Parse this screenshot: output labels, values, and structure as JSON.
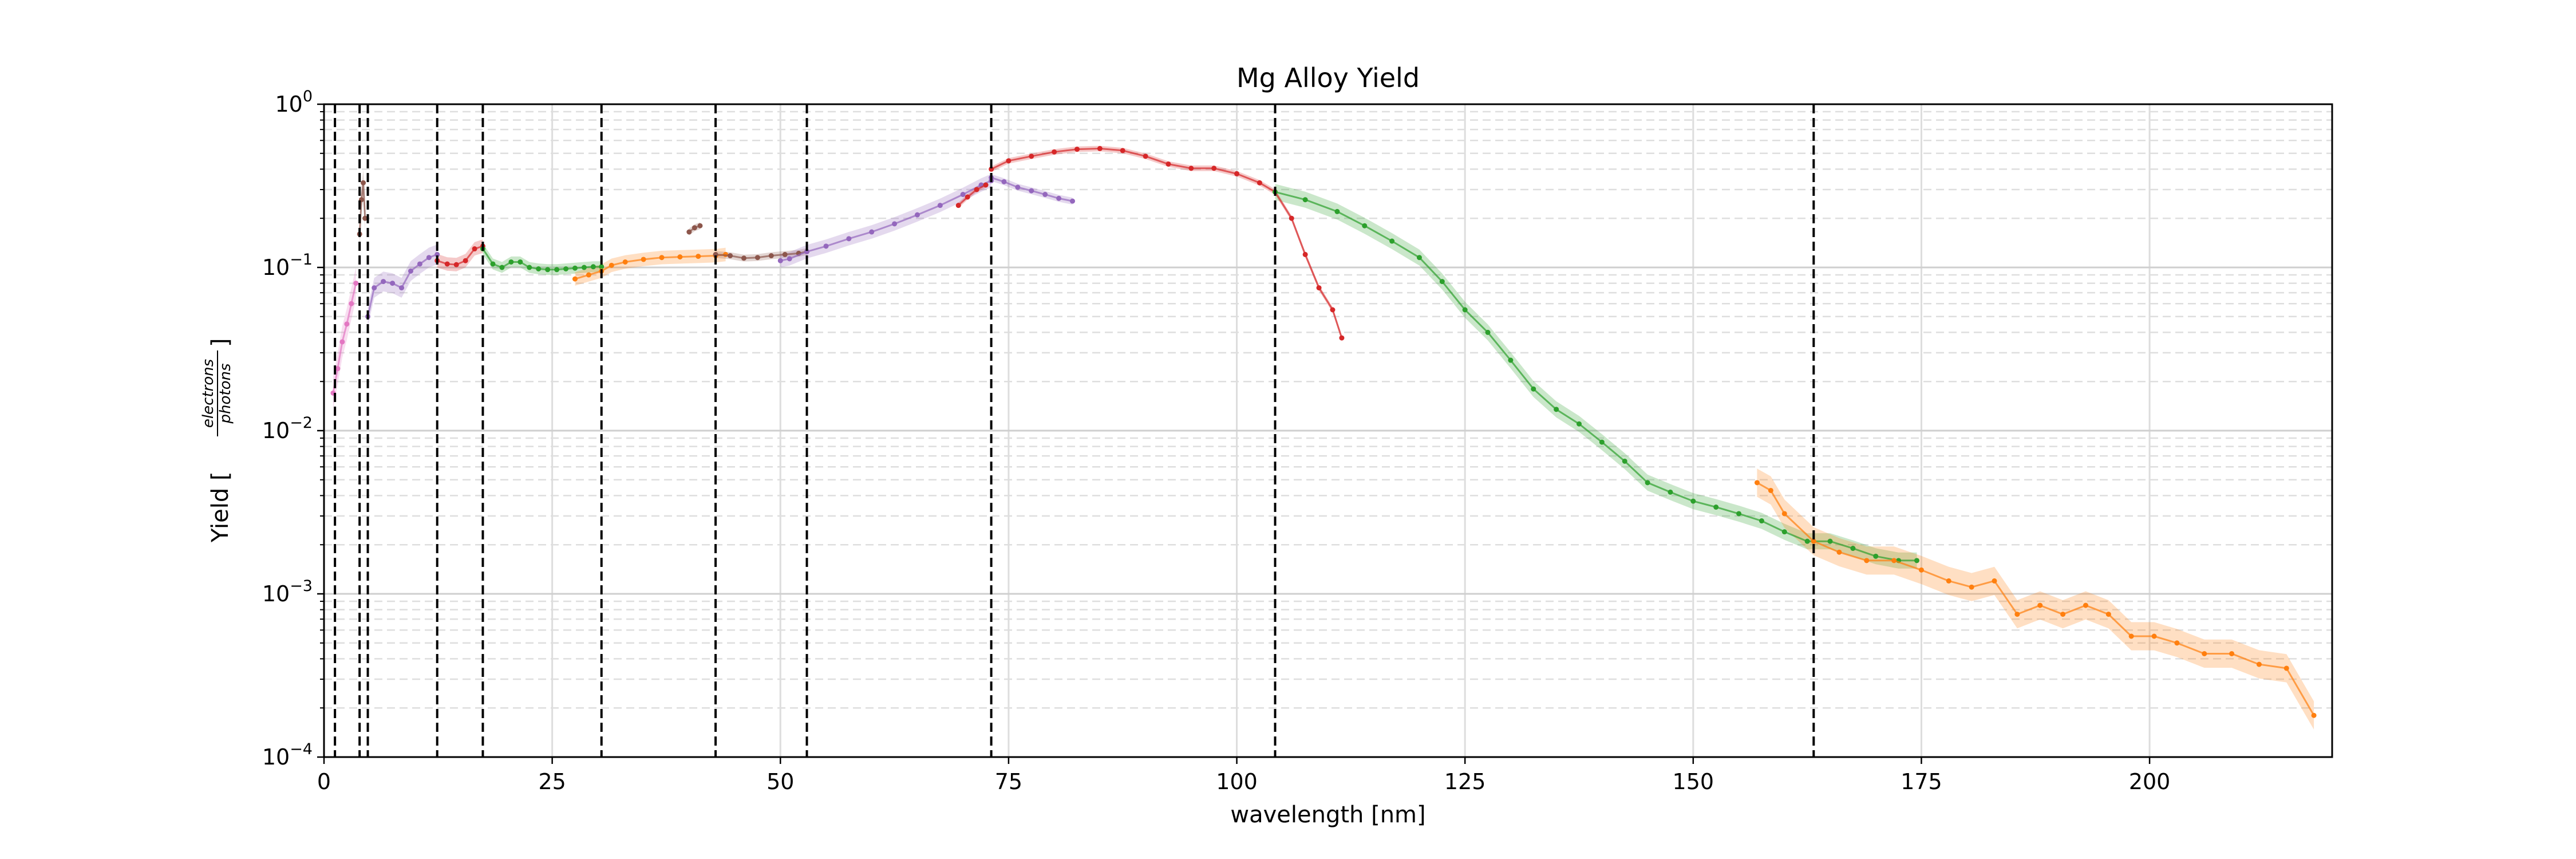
{
  "chart_data": {
    "type": "scatter",
    "title": "Mg Alloy Yield",
    "xlabel": "wavelength [nm]",
    "ylabel_prefix": "Yield [",
    "ylabel_numerator": "electrons",
    "ylabel_denominator": "photons",
    "ylabel_suffix": "]",
    "xlim": [
      0,
      220
    ],
    "ylim": [
      0.0001,
      1
    ],
    "y_scale": "log",
    "grid": true,
    "x_ticks": [
      {
        "value": 0,
        "label": "0"
      },
      {
        "value": 25,
        "label": "25"
      },
      {
        "value": 50,
        "label": "50"
      },
      {
        "value": 75,
        "label": "75"
      },
      {
        "value": 100,
        "label": "100"
      },
      {
        "value": 125,
        "label": "125"
      },
      {
        "value": 150,
        "label": "150"
      },
      {
        "value": 175,
        "label": "175"
      },
      {
        "value": 200,
        "label": "200"
      }
    ],
    "y_ticks": [
      {
        "value": 0.0001,
        "base": "10",
        "exp": "−4"
      },
      {
        "value": 0.001,
        "base": "10",
        "exp": "−3"
      },
      {
        "value": 0.01,
        "base": "10",
        "exp": "−2"
      },
      {
        "value": 0.1,
        "base": "10",
        "exp": "−1"
      },
      {
        "value": 1,
        "base": "10",
        "exp": "0"
      }
    ],
    "vertical_lines": [
      1.2,
      3.9,
      4.8,
      12.4,
      17.4,
      30.4,
      42.9,
      52.9,
      73.1,
      104.2,
      163.2
    ],
    "series": [
      {
        "color": "#e377c2",
        "band": 0.25,
        "points": [
          [
            1,
            0.017
          ],
          [
            1.5,
            0.024
          ],
          [
            2,
            0.035
          ],
          [
            2.5,
            0.045
          ],
          [
            3,
            0.06
          ],
          [
            3.5,
            0.08
          ]
        ]
      },
      {
        "color": "#8c564b",
        "band": 0.2,
        "points": [
          [
            3.9,
            0.16
          ],
          [
            4.1,
            0.26
          ],
          [
            4.3,
            0.33
          ],
          [
            4.5,
            0.2
          ]
        ]
      },
      {
        "color": "#9467bd",
        "band": 0.15,
        "points": [
          [
            4.8,
            0.05
          ],
          [
            5.5,
            0.075
          ],
          [
            6.5,
            0.082
          ],
          [
            7.5,
            0.08
          ],
          [
            8.5,
            0.075
          ],
          [
            9.5,
            0.095
          ],
          [
            10.5,
            0.105
          ],
          [
            11.5,
            0.115
          ],
          [
            12.4,
            0.12
          ]
        ]
      },
      {
        "color": "#d62728",
        "band": 0.1,
        "points": [
          [
            12.4,
            0.11
          ],
          [
            13.5,
            0.105
          ],
          [
            14.5,
            0.104
          ],
          [
            15.5,
            0.11
          ],
          [
            16.5,
            0.13
          ],
          [
            17.4,
            0.135
          ]
        ]
      },
      {
        "color": "#2ca02c",
        "band": 0.08,
        "points": [
          [
            17.4,
            0.13
          ],
          [
            18.5,
            0.105
          ],
          [
            19.5,
            0.1
          ],
          [
            20.5,
            0.108
          ],
          [
            21.5,
            0.108
          ],
          [
            22.5,
            0.1
          ],
          [
            23.5,
            0.098
          ],
          [
            24.5,
            0.097
          ],
          [
            25.5,
            0.097
          ],
          [
            26.5,
            0.098
          ],
          [
            27.5,
            0.099
          ],
          [
            28.5,
            0.1
          ],
          [
            29.5,
            0.101
          ],
          [
            30.4,
            0.101
          ]
        ]
      },
      {
        "color": "#ff7f0e",
        "band": 0.1,
        "points": [
          [
            27.5,
            0.085
          ],
          [
            29,
            0.09
          ],
          [
            30.4,
            0.095
          ],
          [
            31.5,
            0.103
          ],
          [
            33,
            0.108
          ],
          [
            35,
            0.112
          ],
          [
            37,
            0.115
          ],
          [
            39,
            0.116
          ],
          [
            41,
            0.117
          ],
          [
            42.9,
            0.118
          ],
          [
            44,
            0.12
          ]
        ]
      },
      {
        "color": "#8c564b",
        "band": 0.05,
        "points": [
          [
            40,
            0.165
          ],
          [
            40.6,
            0.175
          ],
          [
            41.2,
            0.18
          ]
        ]
      },
      {
        "color": "#8c564b",
        "band": 0.05,
        "points": [
          [
            42.9,
            0.12
          ],
          [
            44.5,
            0.118
          ],
          [
            46,
            0.114
          ],
          [
            47.5,
            0.115
          ],
          [
            49,
            0.118
          ],
          [
            50.5,
            0.12
          ],
          [
            52,
            0.122
          ],
          [
            52.9,
            0.125
          ]
        ]
      },
      {
        "color": "#9467bd",
        "band": 0.1,
        "points": [
          [
            50,
            0.11
          ],
          [
            51,
            0.113
          ],
          [
            52.9,
            0.125
          ],
          [
            55,
            0.135
          ],
          [
            57.5,
            0.15
          ],
          [
            60,
            0.165
          ],
          [
            62.5,
            0.185
          ],
          [
            65,
            0.21
          ],
          [
            67.5,
            0.24
          ],
          [
            70,
            0.28
          ],
          [
            72,
            0.32
          ],
          [
            73.1,
            0.34
          ]
        ]
      },
      {
        "color": "#9467bd",
        "band": 0.05,
        "points": [
          [
            73.1,
            0.355
          ],
          [
            74.5,
            0.335
          ],
          [
            76,
            0.31
          ],
          [
            77.5,
            0.295
          ],
          [
            79,
            0.28
          ],
          [
            80.5,
            0.265
          ],
          [
            82,
            0.255
          ]
        ]
      },
      {
        "color": "#d62728",
        "band": 0.04,
        "points": [
          [
            69.5,
            0.24
          ],
          [
            70.5,
            0.27
          ],
          [
            71.5,
            0.3
          ],
          [
            72.5,
            0.32
          ]
        ]
      },
      {
        "color": "#d62728",
        "band": 0.04,
        "points": [
          [
            73.1,
            0.4
          ],
          [
            75,
            0.45
          ],
          [
            77.5,
            0.48
          ],
          [
            80,
            0.51
          ],
          [
            82.5,
            0.53
          ],
          [
            85,
            0.535
          ],
          [
            87.5,
            0.52
          ],
          [
            90,
            0.48
          ],
          [
            92.5,
            0.43
          ],
          [
            95,
            0.405
          ],
          [
            97.5,
            0.405
          ],
          [
            100,
            0.375
          ],
          [
            102.5,
            0.33
          ],
          [
            104.2,
            0.29
          ],
          [
            106,
            0.2
          ],
          [
            107.5,
            0.12
          ],
          [
            109,
            0.075
          ],
          [
            110.5,
            0.055
          ],
          [
            111.5,
            0.037
          ]
        ]
      },
      {
        "color": "#2ca02c",
        "band": 0.12,
        "points": [
          [
            104.2,
            0.29
          ],
          [
            107.5,
            0.26
          ],
          [
            111,
            0.22
          ],
          [
            114,
            0.18
          ],
          [
            117,
            0.145
          ],
          [
            120,
            0.115
          ],
          [
            122.5,
            0.082
          ],
          [
            125,
            0.055
          ],
          [
            127.5,
            0.04
          ],
          [
            130,
            0.027
          ],
          [
            132.5,
            0.018
          ],
          [
            135,
            0.0135
          ],
          [
            137.5,
            0.011
          ],
          [
            140,
            0.0085
          ],
          [
            142.5,
            0.0065
          ],
          [
            145,
            0.0048
          ],
          [
            147.5,
            0.0042
          ],
          [
            150,
            0.0037
          ],
          [
            152.5,
            0.0034
          ],
          [
            155,
            0.0031
          ],
          [
            157.5,
            0.0028
          ],
          [
            160,
            0.0024
          ],
          [
            162.5,
            0.0021
          ],
          [
            165,
            0.0021
          ],
          [
            167.5,
            0.0019
          ],
          [
            170,
            0.0017
          ],
          [
            172.5,
            0.0016
          ],
          [
            174.5,
            0.0016
          ]
        ]
      },
      {
        "color": "#ff7f0e",
        "band": 0.22,
        "points": [
          [
            157,
            0.0048
          ],
          [
            158.5,
            0.0043
          ],
          [
            160,
            0.0031
          ],
          [
            163.2,
            0.0021
          ],
          [
            166,
            0.0018
          ],
          [
            169,
            0.0016
          ],
          [
            172,
            0.0016
          ],
          [
            175,
            0.0014
          ],
          [
            178,
            0.0012
          ],
          [
            180.5,
            0.0011
          ],
          [
            183,
            0.0012
          ],
          [
            185.5,
            0.00075
          ],
          [
            188,
            0.00085
          ],
          [
            190.5,
            0.00075
          ],
          [
            193,
            0.00085
          ],
          [
            195.5,
            0.00075
          ],
          [
            198,
            0.00055
          ],
          [
            200.5,
            0.00055
          ],
          [
            203,
            0.0005
          ],
          [
            206,
            0.00043
          ],
          [
            209,
            0.00043
          ],
          [
            212,
            0.00037
          ],
          [
            215,
            0.00035
          ],
          [
            218,
            0.00018
          ]
        ]
      }
    ]
  }
}
